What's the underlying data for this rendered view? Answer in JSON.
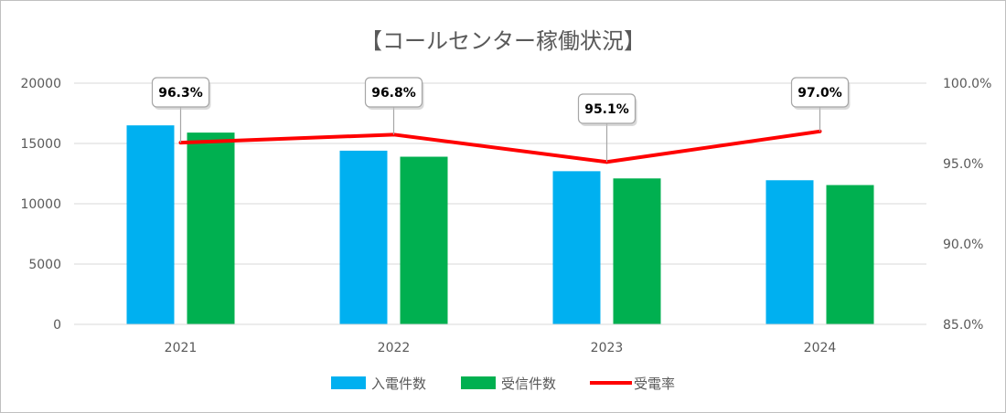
{
  "chart_data": {
    "type": "bar",
    "title": "【コールセンター稼働状況】",
    "categories": [
      "2021",
      "2022",
      "2023",
      "2024"
    ],
    "series": [
      {
        "name": "入電件数",
        "kind": "bar",
        "axis": "left",
        "color": "#00b0f0",
        "values": [
          16500,
          14400,
          12700,
          11950
        ]
      },
      {
        "name": "受信件数",
        "kind": "bar",
        "axis": "left",
        "color": "#00b050",
        "values": [
          15900,
          13900,
          12100,
          11550
        ]
      },
      {
        "name": "受電率",
        "kind": "line",
        "axis": "right",
        "color": "#ff0000",
        "values": [
          96.3,
          96.8,
          95.1,
          97.0
        ],
        "data_labels": [
          "96.3%",
          "96.8%",
          "95.1%",
          "97.0%"
        ]
      }
    ],
    "y_left": {
      "min": 0,
      "max": 20000,
      "ticks": [
        "0",
        "5000",
        "10000",
        "15000",
        "20000"
      ]
    },
    "y_right": {
      "min": 85,
      "max": 100,
      "ticks": [
        "85.0%",
        "90.0%",
        "95.0%",
        "100.0%"
      ]
    },
    "grid": true,
    "legend_position": "bottom",
    "xlabel": "",
    "ylabel": ""
  }
}
